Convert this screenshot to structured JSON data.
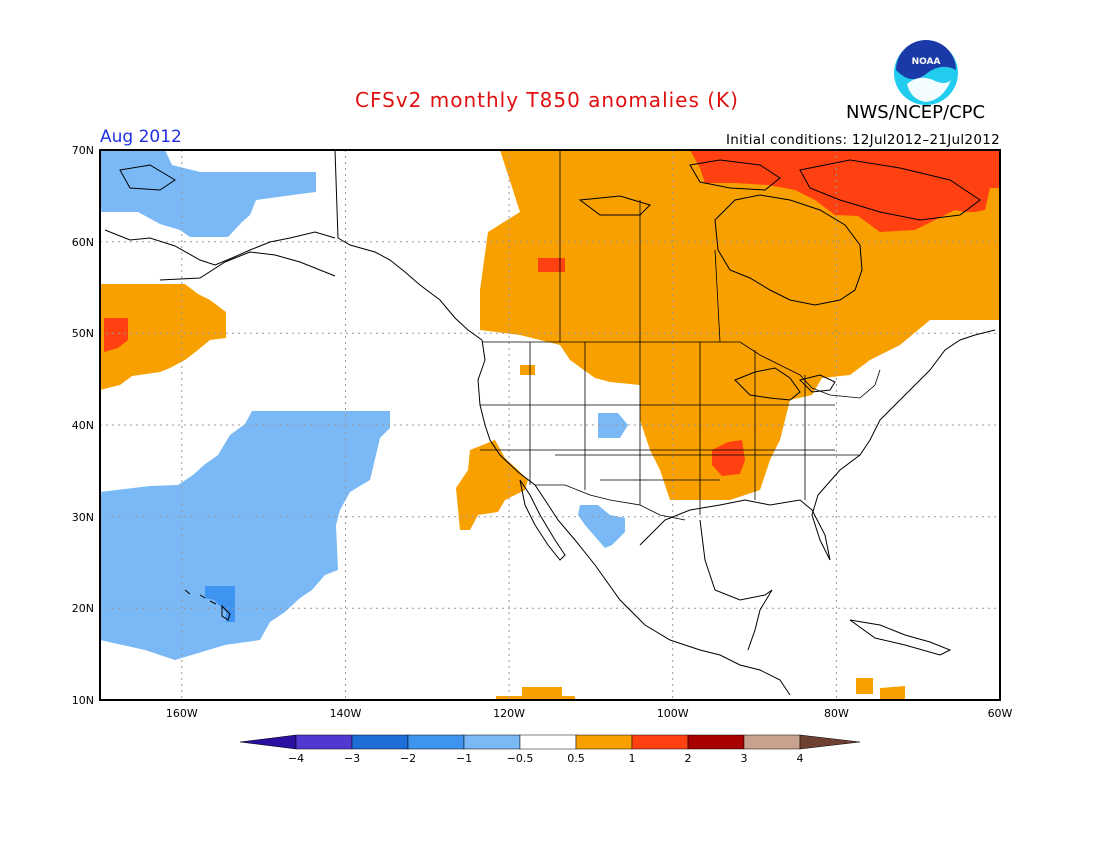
{
  "header": {
    "title": "CFSv2 monthly T850 anomalies (K)",
    "org": "NWS/NCEP/CPC",
    "valid_month": "Aug 2012",
    "initial_conditions": "Initial conditions: 12Jul2012–21Jul2012",
    "logo_text": "NOAA"
  },
  "map": {
    "projection": "lat-lon",
    "lon_range": [
      -171,
      -60
    ],
    "lat_range": [
      10,
      70
    ],
    "lat_labels": [
      "70N",
      "60N",
      "50N",
      "40N",
      "30N",
      "20N",
      "10N"
    ],
    "lon_labels": [
      "160W",
      "140W",
      "120W",
      "100W",
      "80W",
      "60W"
    ],
    "gridlines": "dotted"
  },
  "colorbar": {
    "boundaries": [
      "−4",
      "−3",
      "−2",
      "−1",
      "−0.5",
      "0.5",
      "1",
      "2",
      "3",
      "4"
    ],
    "colors": [
      "#2a0fa0",
      "#5038d0",
      "#1f6ed8",
      "#3f94ef",
      "#7ab9f6",
      "#ffffff",
      "#f7a000",
      "#ff4010",
      "#a80000",
      "#c8a28e",
      "#6e4032"
    ]
  },
  "anomaly_colors": {
    "light_blue": "#7ab9f6",
    "blue": "#3f94ef",
    "orange": "#f7a000",
    "red": "#ff4010"
  }
}
